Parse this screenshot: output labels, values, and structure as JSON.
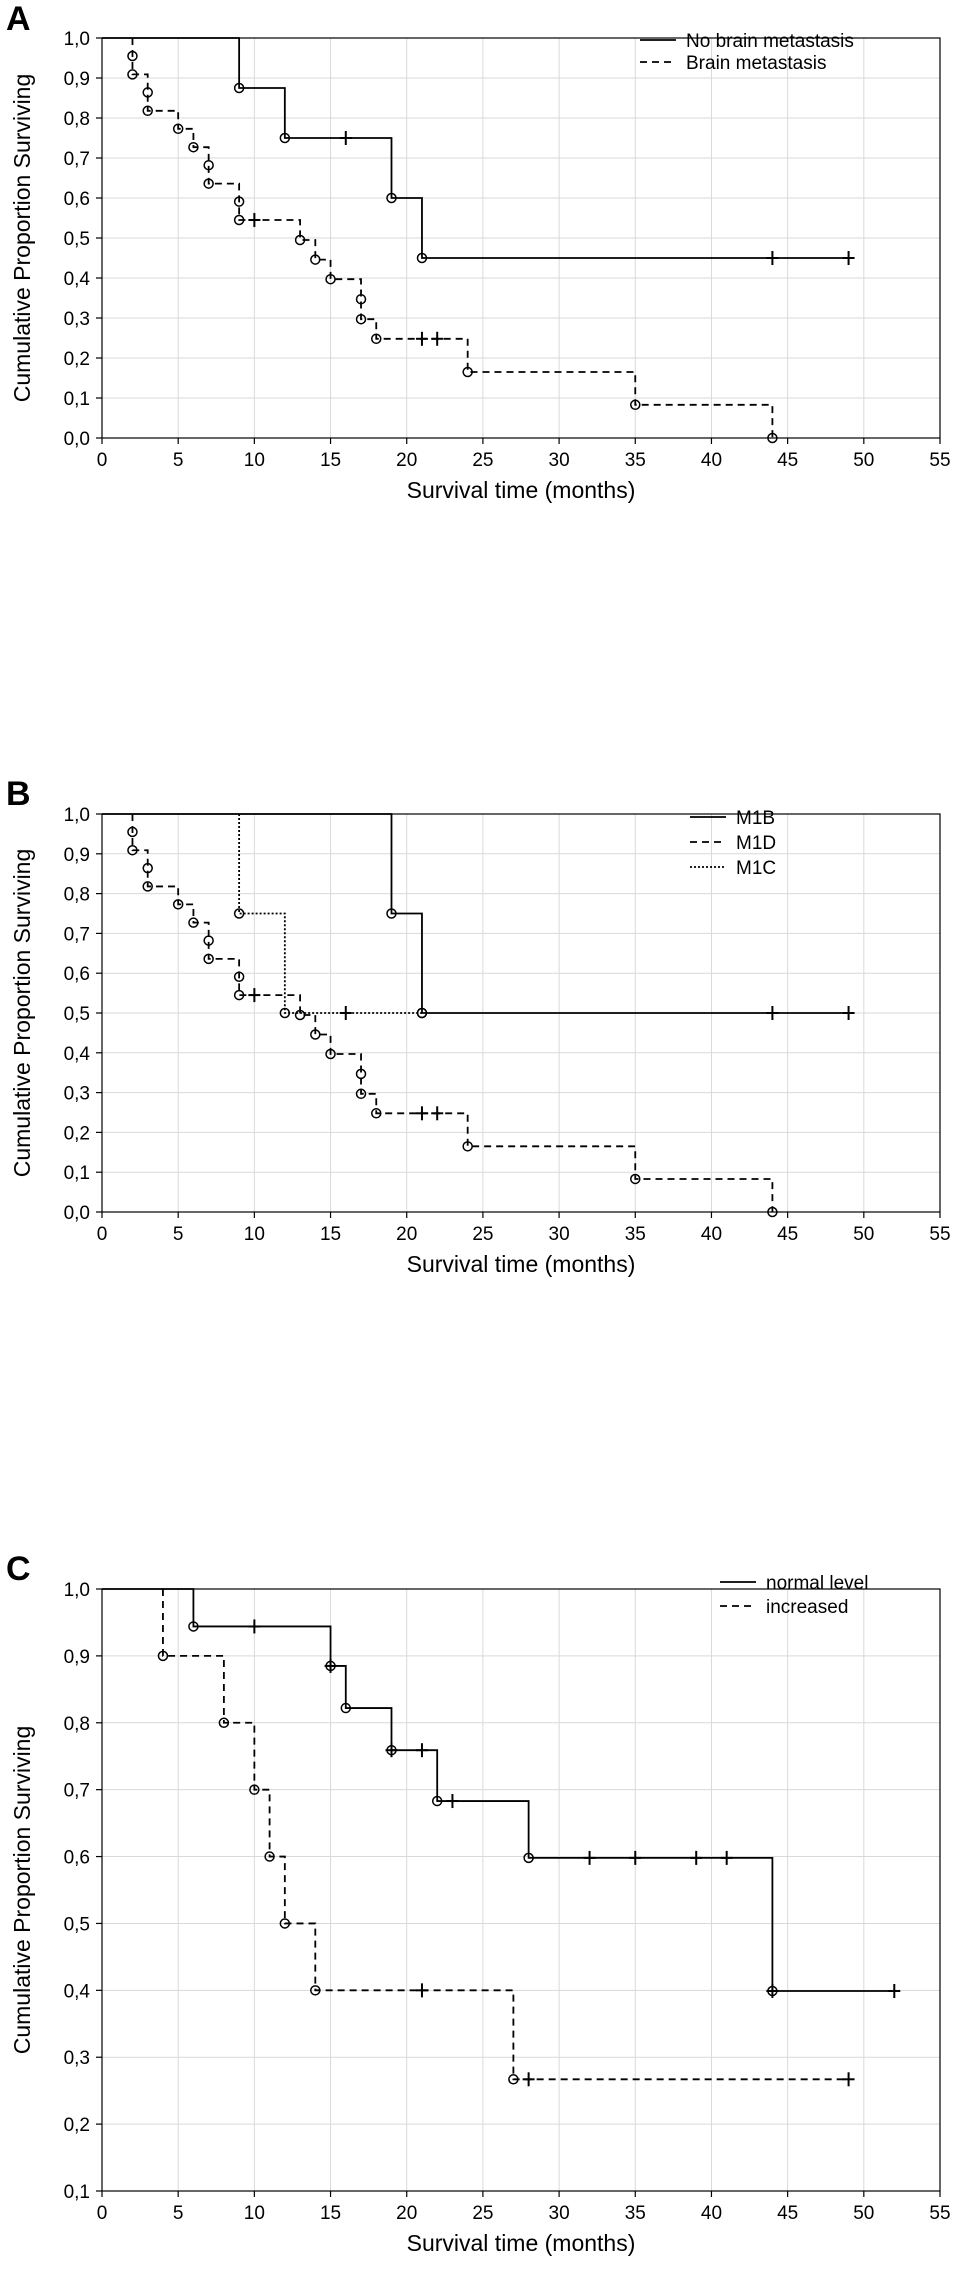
{
  "chart_data": [
    {
      "type": "line",
      "panel_label": "A",
      "xlabel": "Survival time (months)",
      "ylabel": "Cumulative Proportion Surviving",
      "xlim": [
        0,
        55
      ],
      "ylim": [
        0.0,
        1.0
      ],
      "xticks": [
        0,
        5,
        10,
        15,
        20,
        25,
        30,
        35,
        40,
        45,
        50,
        55
      ],
      "yticks": [
        "0,0",
        "0,1",
        "0,2",
        "0,3",
        "0,4",
        "0,5",
        "0,6",
        "0,7",
        "0,8",
        "0,9",
        "1,0"
      ],
      "yvalues": [
        0,
        0.1,
        0.2,
        0.3,
        0.4,
        0.5,
        0.6,
        0.7,
        0.8,
        0.9,
        1.0
      ],
      "grid": true,
      "legend_position": "top-right",
      "series": [
        {
          "name": "No brain metastasis",
          "style": "solid",
          "start": [
            0,
            1.0
          ],
          "events": [
            [
              9,
              0.875
            ],
            [
              12,
              0.75
            ],
            [
              19,
              0.6
            ],
            [
              21,
              0.45
            ]
          ],
          "censored": [
            [
              16,
              0.75
            ],
            [
              44,
              0.45
            ],
            [
              49,
              0.45
            ]
          ],
          "end": 49
        },
        {
          "name": "Brain metastasis",
          "style": "dashed",
          "start": [
            2,
            1.0
          ],
          "events": [
            [
              2,
              0.955
            ],
            [
              2,
              0.909
            ],
            [
              3,
              0.864
            ],
            [
              3,
              0.818
            ],
            [
              5,
              0.773
            ],
            [
              6,
              0.727
            ],
            [
              7,
              0.682
            ],
            [
              7,
              0.636
            ],
            [
              9,
              0.591
            ],
            [
              9,
              0.545
            ],
            [
              13,
              0.495
            ],
            [
              14,
              0.446
            ],
            [
              15,
              0.397
            ],
            [
              17,
              0.347
            ],
            [
              17,
              0.297
            ],
            [
              18,
              0.248
            ],
            [
              24,
              0.165
            ],
            [
              35,
              0.083
            ],
            [
              44,
              0.0
            ]
          ],
          "censored": [
            [
              10,
              0.545
            ],
            [
              21,
              0.248
            ],
            [
              22,
              0.248
            ]
          ],
          "end": 44
        }
      ]
    },
    {
      "type": "line",
      "panel_label": "B",
      "xlabel": "Survival time (months)",
      "ylabel": "Cumulative Proportion Surviving",
      "xlim": [
        0,
        55
      ],
      "ylim": [
        0.0,
        1.0
      ],
      "xticks": [
        0,
        5,
        10,
        15,
        20,
        25,
        30,
        35,
        40,
        45,
        50,
        55
      ],
      "yticks": [
        "0,0",
        "0,1",
        "0,2",
        "0,3",
        "0,4",
        "0,5",
        "0,6",
        "0,7",
        "0,8",
        "0,9",
        "1,0"
      ],
      "yvalues": [
        0,
        0.1,
        0.2,
        0.3,
        0.4,
        0.5,
        0.6,
        0.7,
        0.8,
        0.9,
        1.0
      ],
      "grid": true,
      "legend_position": "top-right",
      "series": [
        {
          "name": "M1B",
          "style": "solid",
          "start": [
            0,
            1.0
          ],
          "events": [
            [
              19,
              0.75
            ],
            [
              21,
              0.5
            ]
          ],
          "censored": [
            [
              44,
              0.5
            ],
            [
              49,
              0.5
            ]
          ],
          "end": 49
        },
        {
          "name": "M1D",
          "style": "dashed",
          "start": [
            2,
            1.0
          ],
          "events": [
            [
              2,
              0.955
            ],
            [
              2,
              0.909
            ],
            [
              3,
              0.864
            ],
            [
              3,
              0.818
            ],
            [
              5,
              0.773
            ],
            [
              6,
              0.727
            ],
            [
              7,
              0.682
            ],
            [
              7,
              0.636
            ],
            [
              9,
              0.591
            ],
            [
              9,
              0.545
            ],
            [
              13,
              0.495
            ],
            [
              14,
              0.446
            ],
            [
              15,
              0.397
            ],
            [
              17,
              0.347
            ],
            [
              17,
              0.297
            ],
            [
              18,
              0.248
            ],
            [
              24,
              0.165
            ],
            [
              35,
              0.083
            ],
            [
              44,
              0.0
            ]
          ],
          "censored": [
            [
              10,
              0.545
            ],
            [
              21,
              0.248
            ],
            [
              22,
              0.248
            ]
          ],
          "end": 44
        },
        {
          "name": "M1C",
          "style": "dotted",
          "start": [
            9,
            1.0
          ],
          "events": [
            [
              9,
              0.75
            ],
            [
              12,
              0.5
            ],
            [
              21,
              0.5
            ]
          ],
          "censored": [
            [
              16,
              0.5
            ]
          ],
          "end": 21
        }
      ]
    },
    {
      "type": "line",
      "panel_label": "C",
      "xlabel": "Survival time (months)",
      "ylabel": "Cumulative Proportion Surviving",
      "xlim": [
        0,
        55
      ],
      "ylim": [
        0.1,
        1.0
      ],
      "xticks": [
        0,
        5,
        10,
        15,
        20,
        25,
        30,
        35,
        40,
        45,
        50,
        55
      ],
      "yticks": [
        "0,1",
        "0,2",
        "0,3",
        "0,4",
        "0,5",
        "0,6",
        "0,7",
        "0,8",
        "0,9",
        "1,0"
      ],
      "yvalues": [
        0.1,
        0.2,
        0.3,
        0.4,
        0.5,
        0.6,
        0.7,
        0.8,
        0.9,
        1.0
      ],
      "grid": true,
      "legend_position": "top-right",
      "series": [
        {
          "name": "normal level",
          "style": "solid",
          "start": [
            0,
            1.0
          ],
          "events": [
            [
              6,
              0.944
            ],
            [
              15,
              0.885
            ],
            [
              16,
              0.822
            ],
            [
              19,
              0.759
            ],
            [
              22,
              0.683
            ],
            [
              28,
              0.598
            ],
            [
              44,
              0.399
            ]
          ],
          "censored": [
            [
              10,
              0.944
            ],
            [
              15,
              0.885
            ],
            [
              19,
              0.759
            ],
            [
              21,
              0.759
            ],
            [
              23,
              0.683
            ],
            [
              32,
              0.598
            ],
            [
              35,
              0.598
            ],
            [
              39,
              0.598
            ],
            [
              41,
              0.598
            ],
            [
              44,
              0.399
            ],
            [
              52,
              0.399
            ]
          ],
          "end": 52
        },
        {
          "name": "increased",
          "style": "dashed",
          "start": [
            4,
            1.0
          ],
          "events": [
            [
              4,
              0.9
            ],
            [
              8,
              0.8
            ],
            [
              10,
              0.7
            ],
            [
              11,
              0.6
            ],
            [
              12,
              0.5
            ],
            [
              14,
              0.4
            ],
            [
              27,
              0.267
            ]
          ],
          "censored": [
            [
              21,
              0.4
            ],
            [
              28,
              0.267
            ],
            [
              49,
              0.267
            ]
          ],
          "end": 49
        }
      ]
    }
  ]
}
